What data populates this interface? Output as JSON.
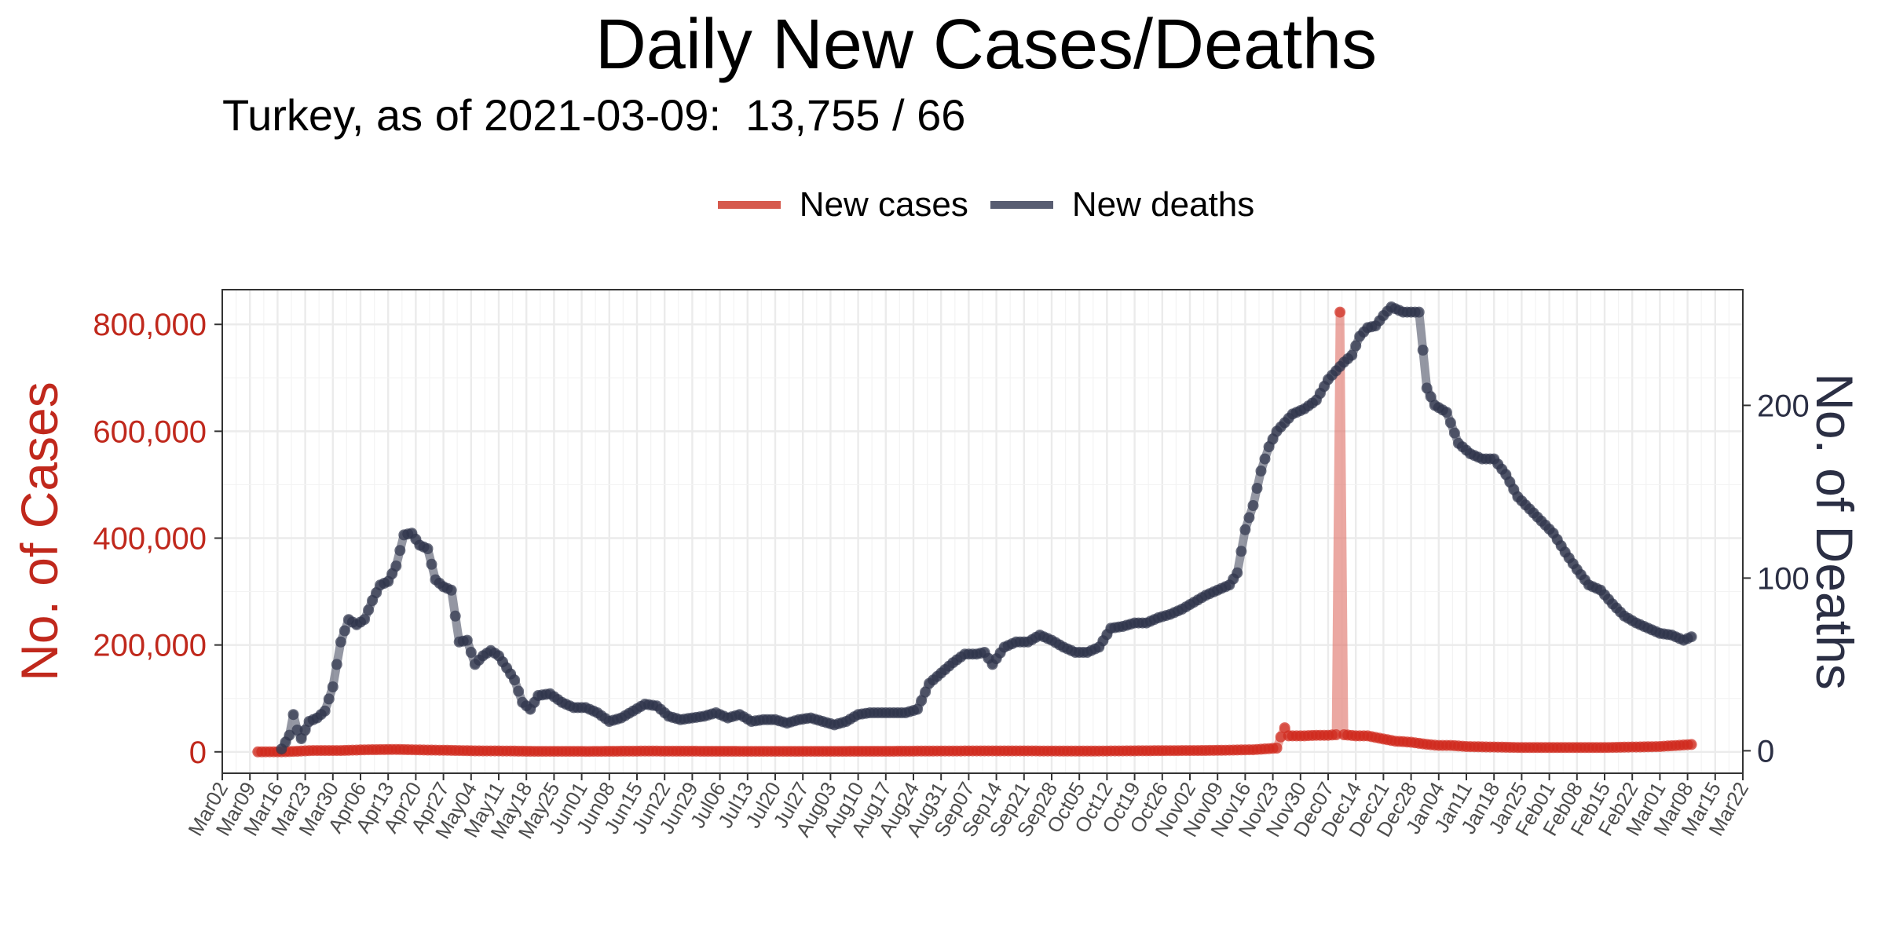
{
  "header": {
    "title": "Daily New Cases/Deaths",
    "subtitle": "Turkey, as of 2021-03-09:  13,755 / 66"
  },
  "legend": [
    {
      "label": "New cases",
      "color": "#d65a4e"
    },
    {
      "label": "New deaths",
      "color": "#585d72"
    }
  ],
  "chart_data": {
    "type": "line",
    "title": "Daily New Cases/Deaths",
    "subtitle": "Turkey, as of 2021-03-09:  13,755 / 66",
    "ylabel_left": "No. of Cases",
    "ylabel_right": "No. of Deaths",
    "x_tick_labels": [
      "Mar02",
      "Mar09",
      "Mar16",
      "Mar23",
      "Mar30",
      "Apr06",
      "Apr13",
      "Apr20",
      "Apr27",
      "May04",
      "May11",
      "May18",
      "May25",
      "Jun01",
      "Jun08",
      "Jun15",
      "Jun22",
      "Jun29",
      "Jul06",
      "Jul13",
      "Jul20",
      "Jul27",
      "Aug03",
      "Aug10",
      "Aug17",
      "Aug24",
      "Aug31",
      "Sep07",
      "Sep14",
      "Sep21",
      "Sep28",
      "Oct05",
      "Oct12",
      "Oct19",
      "Oct26",
      "Nov02",
      "Nov09",
      "Nov16",
      "Nov23",
      "Nov30",
      "Dec07",
      "Dec14",
      "Dec21",
      "Dec28",
      "Jan04",
      "Jan11",
      "Jan18",
      "Jan25",
      "Feb01",
      "Feb08",
      "Feb15",
      "Feb22",
      "Mar01",
      "Mar08",
      "Mar15",
      "Mar22"
    ],
    "x_range": [
      "2020-03-02",
      "2021-03-22"
    ],
    "y_left_ticks": [
      "0",
      "200,000",
      "400,000",
      "600,000",
      "800,000"
    ],
    "y_left_range": [
      -40000,
      865000
    ],
    "y_right_ticks": [
      "0",
      "100",
      "200"
    ],
    "y_right_range": [
      -13,
      267
    ],
    "grid": true,
    "legend_position": "top",
    "colors": {
      "cases": "#d0291d",
      "cases_line": "#e07a70",
      "deaths": "#2f354c",
      "deaths_line": "#5a6072"
    },
    "series": [
      {
        "name": "New cases",
        "axis": "left",
        "points": [
          [
            "2020-03-11",
            1
          ],
          [
            "2020-03-18",
            200
          ],
          [
            "2020-03-25",
            2500
          ],
          [
            "2020-04-01",
            2500
          ],
          [
            "2020-04-08",
            4000
          ],
          [
            "2020-04-15",
            4500
          ],
          [
            "2020-04-22",
            3500
          ],
          [
            "2020-04-29",
            2800
          ],
          [
            "2020-05-06",
            1800
          ],
          [
            "2020-05-13",
            1600
          ],
          [
            "2020-05-20",
            1000
          ],
          [
            "2020-05-27",
            1000
          ],
          [
            "2020-06-03",
            900
          ],
          [
            "2020-06-10",
            1200
          ],
          [
            "2020-06-17",
            1400
          ],
          [
            "2020-06-24",
            1300
          ],
          [
            "2020-07-01",
            1200
          ],
          [
            "2020-07-08",
            1100
          ],
          [
            "2020-07-15",
            1000
          ],
          [
            "2020-07-22",
            1000
          ],
          [
            "2020-07-29",
            950
          ],
          [
            "2020-08-05",
            1000
          ],
          [
            "2020-08-12",
            1200
          ],
          [
            "2020-08-19",
            1200
          ],
          [
            "2020-08-26",
            1400
          ],
          [
            "2020-09-02",
            1600
          ],
          [
            "2020-09-09",
            1700
          ],
          [
            "2020-09-16",
            1700
          ],
          [
            "2020-09-23",
            1700
          ],
          [
            "2020-09-30",
            1500
          ],
          [
            "2020-10-07",
            1400
          ],
          [
            "2020-10-14",
            1700
          ],
          [
            "2020-10-21",
            2000
          ],
          [
            "2020-10-28",
            2300
          ],
          [
            "2020-11-04",
            2500
          ],
          [
            "2020-11-11",
            3000
          ],
          [
            "2020-11-18",
            4000
          ],
          [
            "2020-11-24",
            7000
          ],
          [
            "2020-11-25",
            28000
          ],
          [
            "2020-11-26",
            45000
          ],
          [
            "2020-11-27",
            30000
          ],
          [
            "2020-12-01",
            30000
          ],
          [
            "2020-12-04",
            31000
          ],
          [
            "2020-12-07",
            31000
          ],
          [
            "2020-12-09",
            32000
          ],
          [
            "2020-12-10",
            823000
          ],
          [
            "2020-12-11",
            32000
          ],
          [
            "2020-12-14",
            30000
          ],
          [
            "2020-12-17",
            30000
          ],
          [
            "2020-12-21",
            24000
          ],
          [
            "2020-12-24",
            20000
          ],
          [
            "2020-12-28",
            18000
          ],
          [
            "2021-01-01",
            14000
          ],
          [
            "2021-01-04",
            12000
          ],
          [
            "2021-01-07",
            12000
          ],
          [
            "2021-01-11",
            10000
          ],
          [
            "2021-01-18",
            9000
          ],
          [
            "2021-01-25",
            8000
          ],
          [
            "2021-02-01",
            8000
          ],
          [
            "2021-02-08",
            8000
          ],
          [
            "2021-02-15",
            8000
          ],
          [
            "2021-02-22",
            9000
          ],
          [
            "2021-03-01",
            10000
          ],
          [
            "2021-03-09",
            13755
          ]
        ]
      },
      {
        "name": "New deaths",
        "axis": "right",
        "points": [
          [
            "2020-03-17",
            1
          ],
          [
            "2020-03-19",
            9
          ],
          [
            "2020-03-20",
            21
          ],
          [
            "2020-03-21",
            12
          ],
          [
            "2020-03-22",
            7
          ],
          [
            "2020-03-24",
            17
          ],
          [
            "2020-03-26",
            19
          ],
          [
            "2020-03-28",
            23
          ],
          [
            "2020-03-30",
            37
          ],
          [
            "2020-04-01",
            63
          ],
          [
            "2020-04-03",
            76
          ],
          [
            "2020-04-05",
            73
          ],
          [
            "2020-04-07",
            76
          ],
          [
            "2020-04-09",
            87
          ],
          [
            "2020-04-11",
            96
          ],
          [
            "2020-04-13",
            98
          ],
          [
            "2020-04-15",
            107
          ],
          [
            "2020-04-17",
            125
          ],
          [
            "2020-04-19",
            126
          ],
          [
            "2020-04-21",
            119
          ],
          [
            "2020-04-23",
            117
          ],
          [
            "2020-04-25",
            99
          ],
          [
            "2020-04-27",
            95
          ],
          [
            "2020-04-29",
            93
          ],
          [
            "2020-05-01",
            63
          ],
          [
            "2020-05-03",
            64
          ],
          [
            "2020-05-05",
            50
          ],
          [
            "2020-05-07",
            55
          ],
          [
            "2020-05-09",
            58
          ],
          [
            "2020-05-11",
            55
          ],
          [
            "2020-05-13",
            48
          ],
          [
            "2020-05-15",
            41
          ],
          [
            "2020-05-17",
            28
          ],
          [
            "2020-05-19",
            24
          ],
          [
            "2020-05-21",
            32
          ],
          [
            "2020-05-24",
            33
          ],
          [
            "2020-05-27",
            28
          ],
          [
            "2020-05-30",
            25
          ],
          [
            "2020-06-02",
            25
          ],
          [
            "2020-06-05",
            22
          ],
          [
            "2020-06-08",
            17
          ],
          [
            "2020-06-11",
            19
          ],
          [
            "2020-06-14",
            23
          ],
          [
            "2020-06-17",
            27
          ],
          [
            "2020-06-20",
            26
          ],
          [
            "2020-06-23",
            20
          ],
          [
            "2020-06-26",
            18
          ],
          [
            "2020-06-29",
            19
          ],
          [
            "2020-07-02",
            20
          ],
          [
            "2020-07-05",
            22
          ],
          [
            "2020-07-08",
            19
          ],
          [
            "2020-07-11",
            21
          ],
          [
            "2020-07-14",
            17
          ],
          [
            "2020-07-17",
            18
          ],
          [
            "2020-07-20",
            18
          ],
          [
            "2020-07-23",
            16
          ],
          [
            "2020-07-26",
            18
          ],
          [
            "2020-07-29",
            19
          ],
          [
            "2020-08-01",
            17
          ],
          [
            "2020-08-04",
            15
          ],
          [
            "2020-08-07",
            17
          ],
          [
            "2020-08-10",
            21
          ],
          [
            "2020-08-13",
            22
          ],
          [
            "2020-08-16",
            22
          ],
          [
            "2020-08-19",
            22
          ],
          [
            "2020-08-22",
            22
          ],
          [
            "2020-08-25",
            24
          ],
          [
            "2020-08-28",
            39
          ],
          [
            "2020-08-31",
            45
          ],
          [
            "2020-09-03",
            51
          ],
          [
            "2020-09-06",
            56
          ],
          [
            "2020-09-09",
            56
          ],
          [
            "2020-09-11",
            57
          ],
          [
            "2020-09-13",
            50
          ],
          [
            "2020-09-16",
            60
          ],
          [
            "2020-09-19",
            63
          ],
          [
            "2020-09-22",
            63
          ],
          [
            "2020-09-25",
            67
          ],
          [
            "2020-09-28",
            64
          ],
          [
            "2020-10-01",
            60
          ],
          [
            "2020-10-04",
            57
          ],
          [
            "2020-10-07",
            57
          ],
          [
            "2020-10-10",
            60
          ],
          [
            "2020-10-13",
            71
          ],
          [
            "2020-10-16",
            72
          ],
          [
            "2020-10-19",
            74
          ],
          [
            "2020-10-22",
            74
          ],
          [
            "2020-10-25",
            77
          ],
          [
            "2020-10-28",
            79
          ],
          [
            "2020-10-31",
            82
          ],
          [
            "2020-11-03",
            86
          ],
          [
            "2020-11-06",
            90
          ],
          [
            "2020-11-09",
            93
          ],
          [
            "2020-11-12",
            96
          ],
          [
            "2020-11-14",
            103
          ],
          [
            "2020-11-16",
            128
          ],
          [
            "2020-11-18",
            142
          ],
          [
            "2020-11-20",
            162
          ],
          [
            "2020-11-22",
            176
          ],
          [
            "2020-11-24",
            185
          ],
          [
            "2020-11-26",
            190
          ],
          [
            "2020-11-28",
            195
          ],
          [
            "2020-12-01",
            198
          ],
          [
            "2020-12-04",
            203
          ],
          [
            "2020-12-07",
            215
          ],
          [
            "2020-12-09",
            220
          ],
          [
            "2020-12-11",
            225
          ],
          [
            "2020-12-13",
            229
          ],
          [
            "2020-12-15",
            240
          ],
          [
            "2020-12-17",
            245
          ],
          [
            "2020-12-19",
            246
          ],
          [
            "2020-12-21",
            252
          ],
          [
            "2020-12-23",
            257
          ],
          [
            "2020-12-26",
            254
          ],
          [
            "2020-12-28",
            254
          ],
          [
            "2020-12-30",
            254
          ],
          [
            "2021-01-01",
            210
          ],
          [
            "2021-01-03",
            200
          ],
          [
            "2021-01-06",
            196
          ],
          [
            "2021-01-09",
            178
          ],
          [
            "2021-01-12",
            172
          ],
          [
            "2021-01-15",
            169
          ],
          [
            "2021-01-18",
            169
          ],
          [
            "2021-01-21",
            160
          ],
          [
            "2021-01-24",
            147
          ],
          [
            "2021-01-27",
            140
          ],
          [
            "2021-01-30",
            133
          ],
          [
            "2021-02-02",
            126
          ],
          [
            "2021-02-05",
            115
          ],
          [
            "2021-02-08",
            105
          ],
          [
            "2021-02-11",
            96
          ],
          [
            "2021-02-14",
            93
          ],
          [
            "2021-02-17",
            85
          ],
          [
            "2021-02-20",
            78
          ],
          [
            "2021-02-23",
            74
          ],
          [
            "2021-02-26",
            71
          ],
          [
            "2021-03-01",
            68
          ],
          [
            "2021-03-04",
            67
          ],
          [
            "2021-03-07",
            64
          ],
          [
            "2021-03-09",
            66
          ]
        ]
      }
    ]
  }
}
